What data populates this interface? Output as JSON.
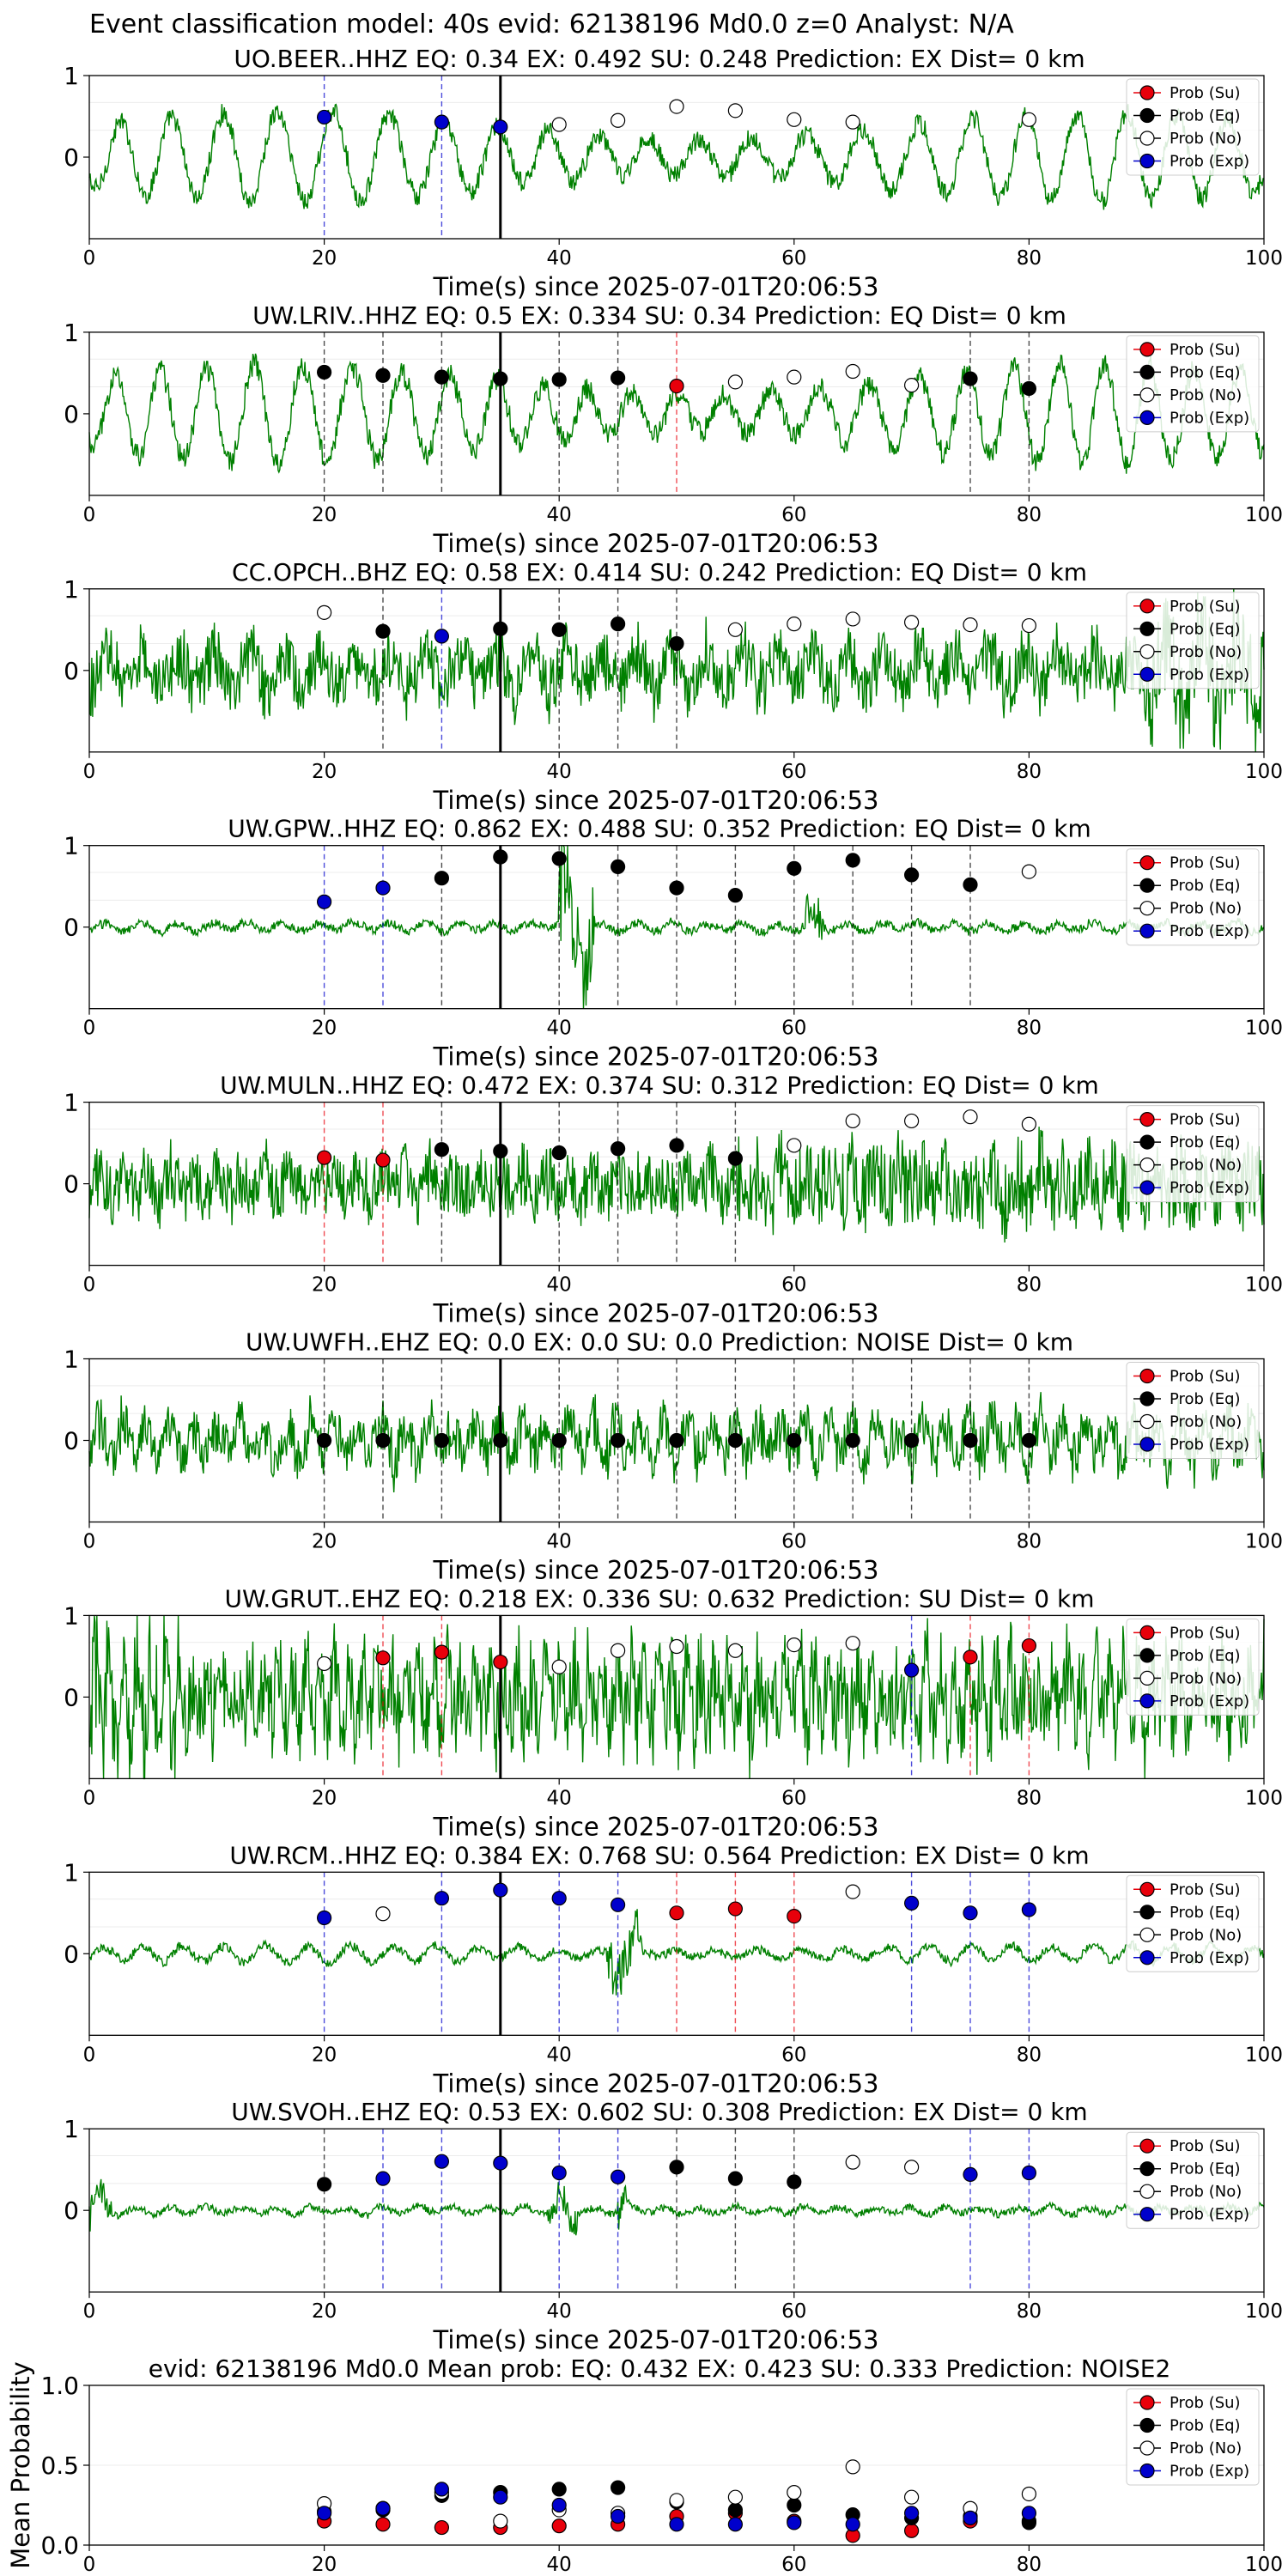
{
  "suptitle": "Event classification model: 40s evid: 62138196 Md0.0 z=0 Analyst: N/A",
  "xlabel": "Time(s) since 2025-07-01T20:06:53",
  "legend": [
    "Prob (Su)",
    "Prob (Eq)",
    "Prob (No)",
    "Prob (Exp)"
  ],
  "colors": {
    "su": "#e8000b",
    "eq": "#000000",
    "no": "#ffffff",
    "exp": "#0000cc",
    "trace": "#008000",
    "event_line": "#000000"
  },
  "chart_data": [
    {
      "type": "line",
      "title": "UO.BEER..HHZ   EQ: 0.34  EX: 0.492  SU: 0.248   Prediction: EX    Dist= 0 km",
      "xlim": [
        0,
        100
      ],
      "ylim": [
        -1,
        1
      ],
      "xticks": [
        0,
        20,
        40,
        60,
        80,
        100
      ],
      "yticks": [
        0,
        1
      ],
      "event_time": 35,
      "waveform": {
        "style": "oscillatory",
        "amplitude": 0.55,
        "period": 4.5,
        "noise": 0.12,
        "envelope": []
      },
      "points": [
        {
          "t": 20,
          "y": 0.49,
          "cls": "exp"
        },
        {
          "t": 30,
          "y": 0.43,
          "cls": "exp"
        },
        {
          "t": 35,
          "y": 0.37,
          "cls": "exp"
        },
        {
          "t": 40,
          "y": 0.4,
          "cls": "no"
        },
        {
          "t": 45,
          "y": 0.45,
          "cls": "no"
        },
        {
          "t": 50,
          "y": 0.62,
          "cls": "no"
        },
        {
          "t": 55,
          "y": 0.57,
          "cls": "no"
        },
        {
          "t": 60,
          "y": 0.46,
          "cls": "no"
        },
        {
          "t": 65,
          "y": 0.43,
          "cls": "no"
        },
        {
          "t": 80,
          "y": 0.46,
          "cls": "no"
        }
      ]
    },
    {
      "type": "line",
      "title": "UW.LRIV..HHZ   EQ: 0.5  EX: 0.334  SU: 0.34   Prediction: EQ    Dist= 0 km",
      "xlim": [
        0,
        100
      ],
      "ylim": [
        -1,
        1
      ],
      "xticks": [
        0,
        20,
        40,
        60,
        80,
        100
      ],
      "yticks": [
        0,
        1
      ],
      "event_time": 35,
      "waveform": {
        "style": "oscillatory",
        "amplitude": 0.6,
        "period": 4.0,
        "noise": 0.14,
        "envelope": []
      },
      "points": [
        {
          "t": 20,
          "y": 0.51,
          "cls": "eq"
        },
        {
          "t": 25,
          "y": 0.47,
          "cls": "eq"
        },
        {
          "t": 30,
          "y": 0.45,
          "cls": "eq"
        },
        {
          "t": 35,
          "y": 0.43,
          "cls": "eq"
        },
        {
          "t": 40,
          "y": 0.42,
          "cls": "eq"
        },
        {
          "t": 45,
          "y": 0.44,
          "cls": "eq"
        },
        {
          "t": 50,
          "y": 0.34,
          "cls": "su"
        },
        {
          "t": 55,
          "y": 0.39,
          "cls": "no"
        },
        {
          "t": 60,
          "y": 0.45,
          "cls": "no"
        },
        {
          "t": 65,
          "y": 0.52,
          "cls": "no"
        },
        {
          "t": 70,
          "y": 0.35,
          "cls": "no"
        },
        {
          "t": 75,
          "y": 0.43,
          "cls": "eq"
        },
        {
          "t": 80,
          "y": 0.31,
          "cls": "eq"
        }
      ]
    },
    {
      "type": "line",
      "title": "CC.OPCH..BHZ   EQ: 0.58  EX: 0.414  SU: 0.242   Prediction: EQ    Dist= 0 km",
      "xlim": [
        0,
        100
      ],
      "ylim": [
        -1,
        1
      ],
      "xticks": [
        0,
        20,
        40,
        60,
        80,
        100
      ],
      "yticks": [
        0,
        1
      ],
      "event_time": 35,
      "waveform": {
        "style": "noisy",
        "amplitude": 0.35,
        "period": 3.0,
        "noise": 0.35,
        "envelope": [
          [
            90,
            100,
            1.8
          ]
        ]
      },
      "points": [
        {
          "t": 20,
          "y": 0.71,
          "cls": "no"
        },
        {
          "t": 25,
          "y": 0.48,
          "cls": "eq"
        },
        {
          "t": 30,
          "y": 0.42,
          "cls": "exp"
        },
        {
          "t": 35,
          "y": 0.51,
          "cls": "eq"
        },
        {
          "t": 40,
          "y": 0.5,
          "cls": "eq"
        },
        {
          "t": 45,
          "y": 0.57,
          "cls": "eq"
        },
        {
          "t": 50,
          "y": 0.33,
          "cls": "eq"
        },
        {
          "t": 55,
          "y": 0.5,
          "cls": "no"
        },
        {
          "t": 60,
          "y": 0.57,
          "cls": "no"
        },
        {
          "t": 65,
          "y": 0.63,
          "cls": "no"
        },
        {
          "t": 70,
          "y": 0.59,
          "cls": "no"
        },
        {
          "t": 75,
          "y": 0.56,
          "cls": "no"
        },
        {
          "t": 80,
          "y": 0.55,
          "cls": "no"
        }
      ]
    },
    {
      "type": "line",
      "title": "UW.GPW..HHZ   EQ: 0.862  EX: 0.488  SU: 0.352   Prediction: EQ    Dist= 0 km",
      "xlim": [
        0,
        100
      ],
      "ylim": [
        -1,
        1
      ],
      "xticks": [
        0,
        20,
        40,
        60,
        80,
        100
      ],
      "yticks": [
        0,
        1
      ],
      "event_time": 35,
      "waveform": {
        "style": "quiet",
        "amplitude": 0.05,
        "period": 3.0,
        "noise": 0.05,
        "envelope": [
          [
            40,
            43,
            14
          ],
          [
            61,
            62.5,
            5
          ]
        ]
      },
      "points": [
        {
          "t": 20,
          "y": 0.31,
          "cls": "exp"
        },
        {
          "t": 25,
          "y": 0.48,
          "cls": "exp"
        },
        {
          "t": 30,
          "y": 0.6,
          "cls": "eq"
        },
        {
          "t": 35,
          "y": 0.86,
          "cls": "eq"
        },
        {
          "t": 40,
          "y": 0.84,
          "cls": "eq"
        },
        {
          "t": 45,
          "y": 0.74,
          "cls": "eq"
        },
        {
          "t": 50,
          "y": 0.48,
          "cls": "eq"
        },
        {
          "t": 55,
          "y": 0.39,
          "cls": "eq"
        },
        {
          "t": 60,
          "y": 0.72,
          "cls": "eq"
        },
        {
          "t": 65,
          "y": 0.82,
          "cls": "eq"
        },
        {
          "t": 70,
          "y": 0.64,
          "cls": "eq"
        },
        {
          "t": 75,
          "y": 0.52,
          "cls": "eq"
        },
        {
          "t": 80,
          "y": 0.68,
          "cls": "no"
        }
      ]
    },
    {
      "type": "line",
      "title": "UW.MULN..HHZ   EQ: 0.472  EX: 0.374  SU: 0.312   Prediction: EQ    Dist= 0 km",
      "xlim": [
        0,
        100
      ],
      "ylim": [
        -1,
        1
      ],
      "xticks": [
        0,
        20,
        40,
        60,
        80,
        100
      ],
      "yticks": [
        0,
        1
      ],
      "event_time": 35,
      "waveform": {
        "style": "noisy",
        "amplitude": 0.2,
        "period": 2.0,
        "noise": 0.38,
        "envelope": [
          [
            55,
            100,
            1.3
          ]
        ]
      },
      "points": [
        {
          "t": 20,
          "y": 0.32,
          "cls": "su"
        },
        {
          "t": 25,
          "y": 0.29,
          "cls": "su"
        },
        {
          "t": 30,
          "y": 0.42,
          "cls": "eq"
        },
        {
          "t": 35,
          "y": 0.4,
          "cls": "eq"
        },
        {
          "t": 40,
          "y": 0.38,
          "cls": "eq"
        },
        {
          "t": 45,
          "y": 0.43,
          "cls": "eq"
        },
        {
          "t": 50,
          "y": 0.47,
          "cls": "eq"
        },
        {
          "t": 55,
          "y": 0.31,
          "cls": "eq"
        },
        {
          "t": 60,
          "y": 0.47,
          "cls": "no"
        },
        {
          "t": 65,
          "y": 0.77,
          "cls": "no"
        },
        {
          "t": 70,
          "y": 0.77,
          "cls": "no"
        },
        {
          "t": 75,
          "y": 0.82,
          "cls": "no"
        },
        {
          "t": 80,
          "y": 0.73,
          "cls": "no"
        }
      ]
    },
    {
      "type": "line",
      "title": "UW.UWFH..EHZ   EQ: 0.0  EX: 0.0  SU: 0.0   Prediction: NOISE    Dist= 0 km",
      "xlim": [
        0,
        100
      ],
      "ylim": [
        -1,
        1
      ],
      "xticks": [
        0,
        20,
        40,
        60,
        80,
        100
      ],
      "yticks": [
        0,
        1
      ],
      "event_time": 35,
      "waveform": {
        "style": "noisy",
        "amplitude": 0.35,
        "period": 2.0,
        "noise": 0.3,
        "envelope": []
      },
      "points": [
        {
          "t": 20,
          "y": 0.0,
          "cls": "eq"
        },
        {
          "t": 25,
          "y": 0.0,
          "cls": "eq"
        },
        {
          "t": 30,
          "y": 0.0,
          "cls": "eq"
        },
        {
          "t": 35,
          "y": 0.0,
          "cls": "eq"
        },
        {
          "t": 40,
          "y": 0.0,
          "cls": "eq"
        },
        {
          "t": 45,
          "y": 0.0,
          "cls": "eq"
        },
        {
          "t": 50,
          "y": 0.0,
          "cls": "eq"
        },
        {
          "t": 55,
          "y": 0.0,
          "cls": "eq"
        },
        {
          "t": 60,
          "y": 0.0,
          "cls": "eq"
        },
        {
          "t": 65,
          "y": 0.0,
          "cls": "eq"
        },
        {
          "t": 70,
          "y": 0.0,
          "cls": "eq"
        },
        {
          "t": 75,
          "y": 0.0,
          "cls": "eq"
        },
        {
          "t": 80,
          "y": 0.0,
          "cls": "eq"
        }
      ]
    },
    {
      "type": "line",
      "title": "UW.GRUT..EHZ   EQ: 0.218  EX: 0.336  SU: 0.632   Prediction: SU    Dist= 0 km",
      "xlim": [
        0,
        100
      ],
      "ylim": [
        -1,
        1
      ],
      "xticks": [
        0,
        20,
        40,
        60,
        80,
        100
      ],
      "yticks": [
        0,
        1
      ],
      "event_time": 35,
      "waveform": {
        "style": "noisy",
        "amplitude": 0.5,
        "period": 1.2,
        "noise": 0.55,
        "envelope": [
          [
            0,
            8,
            1.4
          ]
        ]
      },
      "points": [
        {
          "t": 20,
          "y": 0.41,
          "cls": "no"
        },
        {
          "t": 25,
          "y": 0.48,
          "cls": "su"
        },
        {
          "t": 30,
          "y": 0.55,
          "cls": "su"
        },
        {
          "t": 35,
          "y": 0.43,
          "cls": "su"
        },
        {
          "t": 40,
          "y": 0.37,
          "cls": "no"
        },
        {
          "t": 45,
          "y": 0.57,
          "cls": "no"
        },
        {
          "t": 50,
          "y": 0.62,
          "cls": "no"
        },
        {
          "t": 55,
          "y": 0.57,
          "cls": "no"
        },
        {
          "t": 60,
          "y": 0.64,
          "cls": "no"
        },
        {
          "t": 65,
          "y": 0.66,
          "cls": "no"
        },
        {
          "t": 70,
          "y": 0.33,
          "cls": "exp"
        },
        {
          "t": 75,
          "y": 0.49,
          "cls": "su"
        },
        {
          "t": 80,
          "y": 0.63,
          "cls": "su"
        }
      ]
    },
    {
      "type": "line",
      "title": "UW.RCM..HHZ   EQ: 0.384  EX: 0.768  SU: 0.564   Prediction: EX    Dist= 0 km",
      "xlim": [
        0,
        100
      ],
      "ylim": [
        -1,
        1
      ],
      "xticks": [
        0,
        20,
        40,
        60,
        80,
        100
      ],
      "yticks": [
        0,
        1
      ],
      "event_time": 35,
      "waveform": {
        "style": "oscillatory",
        "amplitude": 0.1,
        "period": 3.5,
        "noise": 0.05,
        "envelope": [
          [
            44,
            47,
            6
          ]
        ]
      },
      "points": [
        {
          "t": 20,
          "y": 0.44,
          "cls": "exp"
        },
        {
          "t": 25,
          "y": 0.49,
          "cls": "no"
        },
        {
          "t": 30,
          "y": 0.68,
          "cls": "exp"
        },
        {
          "t": 35,
          "y": 0.78,
          "cls": "exp"
        },
        {
          "t": 40,
          "y": 0.68,
          "cls": "exp"
        },
        {
          "t": 45,
          "y": 0.6,
          "cls": "exp"
        },
        {
          "t": 50,
          "y": 0.5,
          "cls": "su"
        },
        {
          "t": 55,
          "y": 0.55,
          "cls": "su"
        },
        {
          "t": 60,
          "y": 0.46,
          "cls": "su"
        },
        {
          "t": 65,
          "y": 0.76,
          "cls": "no"
        },
        {
          "t": 70,
          "y": 0.62,
          "cls": "exp"
        },
        {
          "t": 75,
          "y": 0.5,
          "cls": "exp"
        },
        {
          "t": 80,
          "y": 0.54,
          "cls": "exp"
        }
      ]
    },
    {
      "type": "line",
      "title": "UW.SVOH..EHZ   EQ: 0.53  EX: 0.602  SU: 0.308   Prediction: EX    Dist= 0 km",
      "xlim": [
        0,
        100
      ],
      "ylim": [
        -1,
        1
      ],
      "xticks": [
        0,
        20,
        40,
        60,
        80,
        100
      ],
      "yticks": [
        0,
        1
      ],
      "event_time": 35,
      "waveform": {
        "style": "quiet",
        "amplitude": 0.04,
        "period": 3.0,
        "noise": 0.04,
        "envelope": [
          [
            0,
            2,
            5
          ],
          [
            39,
            41.5,
            5
          ],
          [
            45,
            46,
            5
          ]
        ]
      },
      "points": [
        {
          "t": 20,
          "y": 0.32,
          "cls": "eq"
        },
        {
          "t": 25,
          "y": 0.39,
          "cls": "exp"
        },
        {
          "t": 30,
          "y": 0.6,
          "cls": "exp"
        },
        {
          "t": 35,
          "y": 0.58,
          "cls": "exp"
        },
        {
          "t": 40,
          "y": 0.46,
          "cls": "exp"
        },
        {
          "t": 45,
          "y": 0.41,
          "cls": "exp"
        },
        {
          "t": 50,
          "y": 0.53,
          "cls": "eq"
        },
        {
          "t": 55,
          "y": 0.39,
          "cls": "eq"
        },
        {
          "t": 60,
          "y": 0.35,
          "cls": "eq"
        },
        {
          "t": 65,
          "y": 0.59,
          "cls": "no"
        },
        {
          "t": 70,
          "y": 0.53,
          "cls": "no"
        },
        {
          "t": 75,
          "y": 0.44,
          "cls": "exp"
        },
        {
          "t": 80,
          "y": 0.46,
          "cls": "exp"
        }
      ]
    },
    {
      "type": "scatter",
      "title": "evid: 62138196  Md0.0   Mean prob:    EQ: 0.432  EX: 0.423  SU: 0.333   Prediction: NOISE2",
      "ylabel": "Mean Probability",
      "xlim": [
        0,
        100
      ],
      "ylim": [
        0,
        1
      ],
      "xticks": [
        0,
        20,
        40,
        60,
        80,
        100
      ],
      "yticks": [
        0.0,
        0.5,
        1.0
      ],
      "ytick_labels": [
        "0.0",
        "0.5",
        "1.0"
      ],
      "series": [
        {
          "name": "Prob (Su)",
          "cls": "su",
          "x": [
            20,
            25,
            30,
            35,
            40,
            45,
            50,
            55,
            60,
            65,
            70,
            75,
            80
          ],
          "y": [
            0.15,
            0.13,
            0.11,
            0.11,
            0.12,
            0.13,
            0.18,
            0.2,
            0.15,
            0.06,
            0.09,
            0.15,
            0.15
          ]
        },
        {
          "name": "Prob (Eq)",
          "cls": "eq",
          "x": [
            20,
            25,
            30,
            35,
            40,
            45,
            50,
            55,
            60,
            65,
            70,
            75,
            80
          ],
          "y": [
            0.21,
            0.22,
            0.31,
            0.33,
            0.35,
            0.36,
            0.27,
            0.22,
            0.25,
            0.19,
            0.17,
            0.18,
            0.14
          ]
        },
        {
          "name": "Prob (No)",
          "cls": "no",
          "x": [
            20,
            25,
            30,
            35,
            40,
            45,
            50,
            55,
            60,
            65,
            70,
            75,
            80
          ],
          "y": [
            0.26,
            0.23,
            0.33,
            0.15,
            0.22,
            0.2,
            0.28,
            0.3,
            0.33,
            0.49,
            0.3,
            0.23,
            0.32
          ]
        },
        {
          "name": "Prob (Exp)",
          "cls": "exp",
          "x": [
            20,
            25,
            30,
            35,
            40,
            45,
            50,
            55,
            60,
            65,
            70,
            75,
            80
          ],
          "y": [
            0.2,
            0.23,
            0.35,
            0.3,
            0.25,
            0.18,
            0.13,
            0.13,
            0.14,
            0.13,
            0.2,
            0.17,
            0.2
          ]
        }
      ]
    }
  ]
}
